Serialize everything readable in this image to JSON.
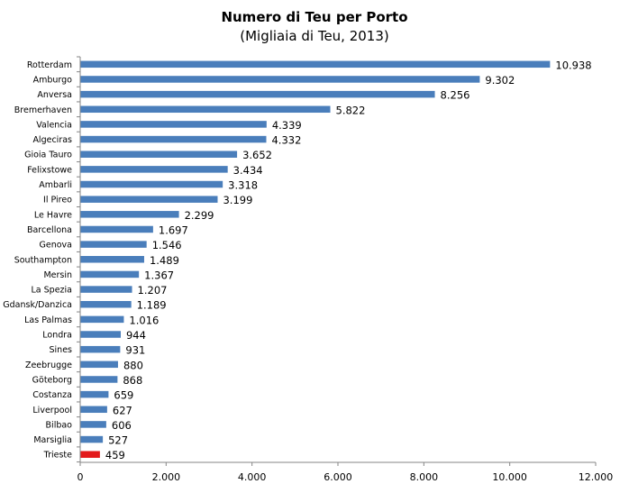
{
  "chart_data": {
    "type": "bar",
    "orientation": "horizontal",
    "title": "Numero di Teu per Porto",
    "subtitle": "(Migliaia di Teu, 2013)",
    "categories": [
      "Rotterdam",
      "Amburgo",
      "Anversa",
      "Bremerhaven",
      "Valencia",
      "Algeciras",
      "Gioia Tauro",
      "Felixstowe",
      "Ambarli",
      "Il Pireo",
      "Le Havre",
      "Barcellona",
      "Genova",
      "Southampton",
      "Mersin",
      "La Spezia",
      "Gdansk/Danzica",
      "Las Palmas",
      "Londra",
      "Sines",
      "Zeebrugge",
      "Göteborg",
      "Costanza",
      "Liverpool",
      "Bilbao",
      "Marsiglia",
      "Trieste"
    ],
    "values": [
      10938,
      9302,
      8256,
      5822,
      4339,
      4332,
      3652,
      3434,
      3318,
      3199,
      2299,
      1697,
      1546,
      1489,
      1367,
      1207,
      1189,
      1016,
      944,
      931,
      880,
      868,
      659,
      627,
      606,
      527,
      459
    ],
    "value_labels": [
      "10.938",
      "9.302",
      "8.256",
      "5.822",
      "4.339",
      "4.332",
      "3.652",
      "3.434",
      "3.318",
      "3.199",
      "2.299",
      "1.697",
      "1.546",
      "1.489",
      "1.367",
      "1.207",
      "1.189",
      "1.016",
      "944",
      "931",
      "880",
      "868",
      "659",
      "627",
      "606",
      "527",
      "459"
    ],
    "xlim": [
      0,
      12000
    ],
    "xticks": [
      0,
      2000,
      4000,
      6000,
      8000,
      10000,
      12000
    ],
    "xtick_labels": [
      "0",
      "2.000",
      "4.000",
      "6.000",
      "8.000",
      "10.000",
      "12.000"
    ],
    "grid": false,
    "colors": {
      "bar": "#4a7ebb",
      "highlight": "#e31a1c",
      "axis": "#868686"
    },
    "highlight_category": "Trieste"
  }
}
